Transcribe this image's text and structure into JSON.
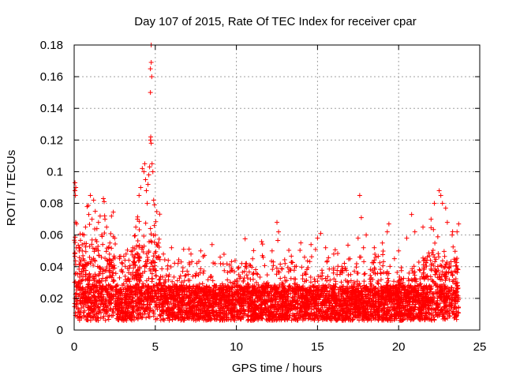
{
  "chart_data": {
    "type": "scatter",
    "title": "Day 107 of 2015, Rate Of TEC Index for receiver cpar",
    "xlabel": "GPS time / hours",
    "ylabel": "ROTI / TECUs",
    "xlim": [
      0,
      25
    ],
    "ylim": [
      0,
      0.18
    ],
    "x_ticks": [
      0,
      5,
      10,
      15,
      20,
      25
    ],
    "y_ticks": [
      0,
      0.02,
      0.04,
      0.06,
      0.08,
      0.1,
      0.12,
      0.14,
      0.16,
      0.18
    ],
    "x_tick_labels": [
      "0",
      "5",
      "10",
      "15",
      "20",
      "25"
    ],
    "y_tick_labels": [
      "0",
      "0.02",
      "0.04",
      "0.06",
      "0.08",
      "0.1",
      "0.12",
      "0.14",
      "0.16",
      "0.18"
    ],
    "grid": true,
    "marker": "+",
    "color": "#ff0000",
    "data_x_range": [
      0,
      23.7
    ],
    "series": [
      {
        "name": "ROTI",
        "points": [
          [
            0.05,
            0.093
          ],
          [
            0.05,
            0.088
          ],
          [
            0.08,
            0.085
          ],
          [
            0.1,
            0.068
          ],
          [
            0.1,
            0.09
          ],
          [
            0.15,
            0.067
          ],
          [
            0.5,
            0.05
          ],
          [
            0.6,
            0.06
          ],
          [
            0.7,
            0.065
          ],
          [
            0.8,
            0.078
          ],
          [
            0.9,
            0.073
          ],
          [
            1.0,
            0.085
          ],
          [
            1.1,
            0.07
          ],
          [
            1.2,
            0.082
          ],
          [
            1.3,
            0.075
          ],
          [
            1.4,
            0.064
          ],
          [
            1.5,
            0.068
          ],
          [
            1.6,
            0.072
          ],
          [
            1.7,
            0.06
          ],
          [
            1.8,
            0.083
          ],
          [
            1.85,
            0.081
          ],
          [
            1.9,
            0.07
          ],
          [
            2.0,
            0.065
          ],
          [
            2.2,
            0.055
          ],
          [
            2.3,
            0.072
          ],
          [
            2.5,
            0.058
          ],
          [
            2.8,
            0.045
          ],
          [
            3.2,
            0.048
          ],
          [
            3.6,
            0.05
          ],
          [
            3.8,
            0.065
          ],
          [
            3.9,
            0.07
          ],
          [
            4.0,
            0.085
          ],
          [
            4.1,
            0.09
          ],
          [
            4.2,
            0.102
          ],
          [
            4.3,
            0.1
          ],
          [
            4.35,
            0.105
          ],
          [
            4.4,
            0.095
          ],
          [
            4.45,
            0.088
          ],
          [
            4.5,
            0.08
          ],
          [
            4.55,
            0.092
          ],
          [
            4.6,
            0.098
          ],
          [
            4.65,
            0.103
          ],
          [
            4.7,
            0.12
          ],
          [
            4.72,
            0.122
          ],
          [
            4.75,
            0.118
          ],
          [
            4.75,
            0.18
          ],
          [
            4.75,
            0.169
          ],
          [
            4.7,
            0.165
          ],
          [
            4.78,
            0.16
          ],
          [
            4.7,
            0.15
          ],
          [
            4.8,
            0.105
          ],
          [
            4.85,
            0.1
          ],
          [
            4.9,
            0.082
          ],
          [
            4.95,
            0.079
          ],
          [
            5.0,
            0.06
          ],
          [
            5.2,
            0.055
          ],
          [
            5.5,
            0.048
          ],
          [
            5.8,
            0.044
          ],
          [
            6.0,
            0.052
          ],
          [
            6.6,
            0.043
          ],
          [
            7.2,
            0.048
          ],
          [
            7.8,
            0.05
          ],
          [
            8.5,
            0.054
          ],
          [
            9.0,
            0.046
          ],
          [
            9.6,
            0.041
          ],
          [
            10.5,
            0.037
          ],
          [
            11.0,
            0.045
          ],
          [
            11.6,
            0.047
          ],
          [
            12.2,
            0.05
          ],
          [
            12.5,
            0.068
          ],
          [
            12.6,
            0.062
          ],
          [
            13.0,
            0.042
          ],
          [
            13.6,
            0.04
          ],
          [
            14.2,
            0.046
          ],
          [
            14.6,
            0.054
          ],
          [
            15.0,
            0.058
          ],
          [
            15.2,
            0.061
          ],
          [
            15.5,
            0.052
          ],
          [
            16.0,
            0.048
          ],
          [
            16.5,
            0.04
          ],
          [
            17.0,
            0.045
          ],
          [
            17.5,
            0.058
          ],
          [
            17.6,
            0.085
          ],
          [
            17.7,
            0.071
          ],
          [
            18.0,
            0.06
          ],
          [
            18.5,
            0.052
          ],
          [
            19.0,
            0.055
          ],
          [
            19.3,
            0.062
          ],
          [
            19.4,
            0.067
          ],
          [
            20.0,
            0.05
          ],
          [
            20.5,
            0.058
          ],
          [
            20.8,
            0.073
          ],
          [
            21.0,
            0.062
          ],
          [
            21.5,
            0.065
          ],
          [
            22.0,
            0.07
          ],
          [
            22.2,
            0.08
          ],
          [
            22.5,
            0.088
          ],
          [
            22.6,
            0.085
          ],
          [
            22.7,
            0.08
          ],
          [
            22.9,
            0.077
          ],
          [
            23.0,
            0.068
          ],
          [
            23.3,
            0.06
          ],
          [
            23.6,
            0.062
          ],
          [
            23.7,
            0.067
          ]
        ]
      }
    ]
  }
}
